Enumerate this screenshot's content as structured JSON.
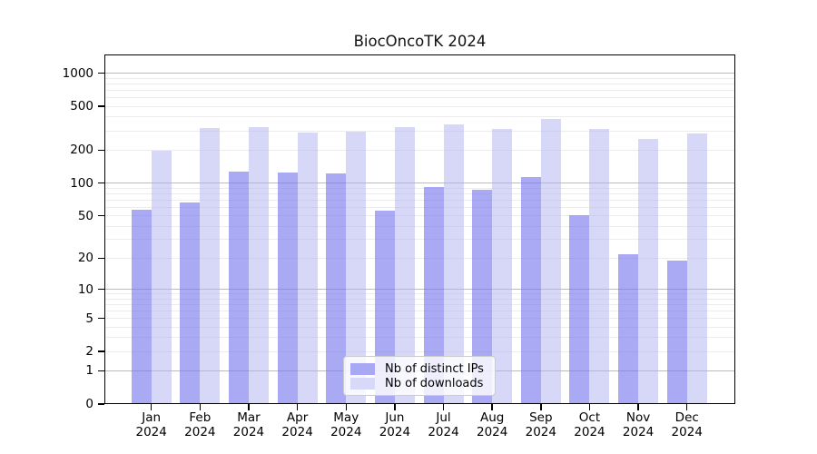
{
  "title": "BiocOncoTK 2024",
  "legend": {
    "items": [
      {
        "label": "Nb of distinct IPs",
        "color": "#a8a8f4"
      },
      {
        "label": "Nb of downloads",
        "color": "#d8d8f8"
      }
    ]
  },
  "chart_data": {
    "type": "bar",
    "title": "BiocOncoTK 2024",
    "xlabel": "",
    "ylabel": "",
    "yscale": "log10(value+1)",
    "ylim": [
      0,
      1480
    ],
    "yticks": [
      1000,
      500,
      200,
      100,
      50,
      20,
      10,
      5,
      2,
      1,
      0
    ],
    "grid_minor": [
      2,
      3,
      4,
      5,
      6,
      7,
      8,
      9,
      20,
      30,
      40,
      50,
      60,
      70,
      80,
      90,
      200,
      300,
      400,
      500,
      600,
      700,
      800,
      900
    ],
    "grid_major": [
      1,
      10,
      100,
      1000
    ],
    "grid_minor_color": "#ececec",
    "grid_major_color": "#bbbbbb",
    "legend_position": "lower center",
    "months": [
      "Jan",
      "Feb",
      "Mar",
      "Apr",
      "May",
      "Jun",
      "Jul",
      "Aug",
      "Sep",
      "Oct",
      "Nov",
      "Dec"
    ],
    "year": "2024",
    "categories": [
      "Jan 2024",
      "Feb 2024",
      "Mar 2024",
      "Apr 2024",
      "May 2024",
      "Jun 2024",
      "Jul 2024",
      "Aug 2024",
      "Sep 2024",
      "Oct 2024",
      "Nov 2024",
      "Dec 2024"
    ],
    "series": [
      {
        "name": "Nb of distinct IPs",
        "color": "rgba(120,120,238,0.64)",
        "values": [
          57,
          66,
          127,
          125,
          122,
          56,
          92,
          87,
          113,
          51,
          22,
          19
        ]
      },
      {
        "name": "Nb of downloads",
        "color": "rgba(176,176,240,0.5)",
        "values": [
          197,
          320,
          322,
          290,
          292,
          325,
          345,
          312,
          388,
          310,
          252,
          282
        ]
      }
    ]
  }
}
